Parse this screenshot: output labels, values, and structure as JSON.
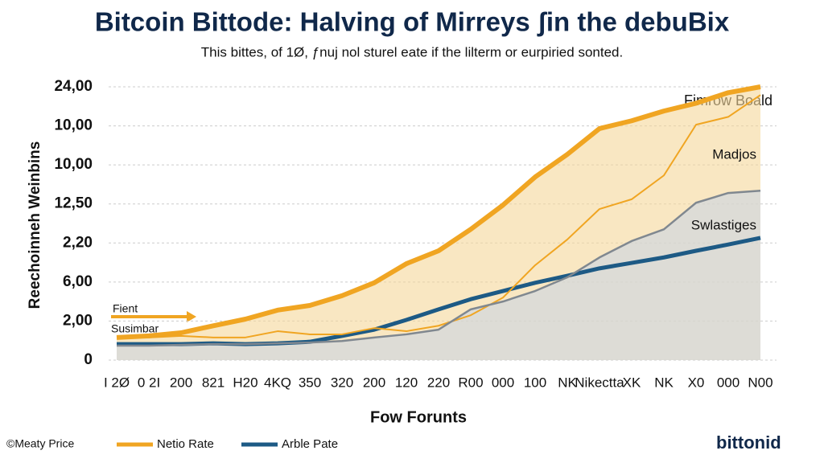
{
  "chart_data": {
    "type": "line",
    "title": "Bitcoin Bittode: Halving of Mirreys ʃin the debuBix",
    "subtitle": "This bittes, of 1Ø, ƒnuj nol sturel eate if the lilterm or eurpiried sonted.",
    "x_label": "Fow Forunts",
    "y_label": "Reechoinneh Weinbins",
    "categories": [
      "I 2Ø",
      "0 2I",
      "200",
      "821",
      "H20",
      "4KQ",
      "350",
      "320",
      "200",
      "120",
      "220",
      "R00",
      "000",
      "100",
      "NK",
      "Nikectta",
      "XK",
      "NK",
      "X0",
      "000",
      "N00"
    ],
    "ylim": [
      0,
      7
    ],
    "yticks": [
      0,
      {
        "value": 1,
        "label": "2,00"
      },
      {
        "value": 2,
        "label": "6,00"
      },
      {
        "value": 3,
        "label": "2,20"
      },
      {
        "value": 4,
        "label": "12,50"
      },
      {
        "value": 5,
        "label": "10,00"
      },
      {
        "value": 6,
        "label": "10,00"
      },
      {
        "value": 7,
        "label": "24,00"
      }
    ],
    "grid": true,
    "series": [
      {
        "name": "Netio Rate",
        "color": "#f0a522",
        "legend": true,
        "values": [
          0.58,
          0.62,
          0.7,
          0.88,
          1.05,
          1.28,
          1.4,
          1.65,
          1.98,
          2.47,
          2.8,
          3.35,
          3.97,
          4.69,
          5.27,
          5.93,
          6.13,
          6.38,
          6.58,
          6.85,
          7.0
        ]
      },
      {
        "name": "Arble Pate",
        "color": "#1d5a85",
        "legend": true,
        "values": [
          0.41,
          0.41,
          0.41,
          0.43,
          0.41,
          0.43,
          0.47,
          0.62,
          0.78,
          1.03,
          1.3,
          1.56,
          1.77,
          1.98,
          2.16,
          2.35,
          2.49,
          2.63,
          2.8,
          2.96,
          3.13
        ]
      },
      {
        "name": "Madjos",
        "color": "#f0a522",
        "legend": false,
        "values": [
          0.58,
          0.58,
          0.62,
          0.58,
          0.58,
          0.74,
          0.66,
          0.66,
          0.82,
          0.74,
          0.88,
          1.15,
          1.6,
          2.43,
          3.09,
          3.87,
          4.12,
          4.73,
          6.03,
          6.23,
          6.79
        ]
      },
      {
        "name": "Swlastiges",
        "color": "#808890",
        "legend": false,
        "values": [
          0.37,
          0.37,
          0.39,
          0.41,
          0.41,
          0.43,
          0.45,
          0.49,
          0.58,
          0.66,
          0.78,
          1.3,
          1.5,
          1.77,
          2.12,
          2.63,
          3.05,
          3.35,
          4.03,
          4.28,
          4.34
        ]
      }
    ],
    "annotations": [
      "Fimrow Boald",
      "Fient",
      "Susimbar"
    ],
    "footer_left": "©Meaty Price",
    "logo": "bittonid"
  }
}
